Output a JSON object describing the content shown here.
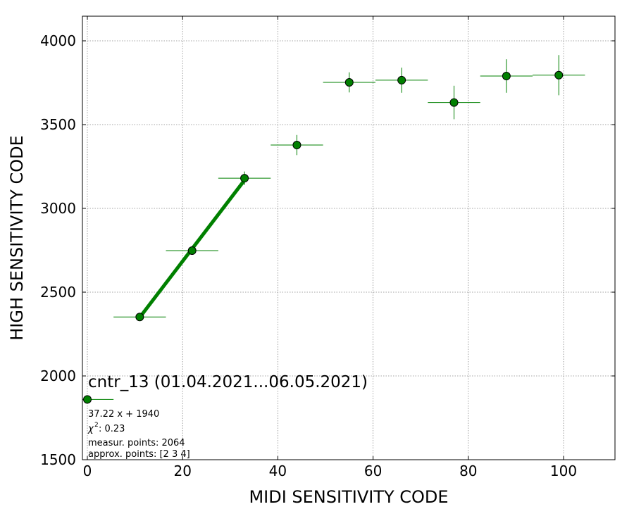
{
  "chart_data": {
    "type": "scatter",
    "xlabel": "MIDI SENSITIVITY CODE",
    "ylabel": "HIGH SENSITIVITY CODE",
    "xlim": [
      -1,
      111
    ],
    "ylim": [
      1500,
      4150
    ],
    "x_ticks": [
      0,
      20,
      40,
      60,
      80,
      100
    ],
    "y_ticks": [
      1500,
      2000,
      2500,
      3000,
      3500,
      4000
    ],
    "grid": true,
    "marker_color": "#008000",
    "marker_edge_color": "#000000",
    "fit_color": "#008000",
    "points": [
      {
        "x": 0,
        "y": 1860,
        "xerr": 5.5,
        "yerr": 0
      },
      {
        "x": 11,
        "y": 2352,
        "xerr": 5.5,
        "yerr": 8
      },
      {
        "x": 22,
        "y": 2748,
        "xerr": 5.5,
        "yerr": 25
      },
      {
        "x": 33,
        "y": 3180,
        "xerr": 5.5,
        "yerr": 40
      },
      {
        "x": 44,
        "y": 3378,
        "xerr": 5.5,
        "yerr": 60
      },
      {
        "x": 55,
        "y": 3752,
        "xerr": 5.5,
        "yerr": 60
      },
      {
        "x": 66,
        "y": 3765,
        "xerr": 5.5,
        "yerr": 75
      },
      {
        "x": 77,
        "y": 3632,
        "xerr": 5.5,
        "yerr": 100
      },
      {
        "x": 88,
        "y": 3790,
        "xerr": 5.5,
        "yerr": 100
      },
      {
        "x": 99,
        "y": 3795,
        "xerr": 5.5,
        "yerr": 120
      }
    ],
    "fit": {
      "slope": 37.22,
      "intercept": 1940,
      "x_from": 11,
      "x_to": 33
    },
    "annotations": {
      "title": "cntr_13 (01.04.2021...06.05.2021)",
      "equation": "37.22 x + 1940",
      "chi2": ": 0.23",
      "measur": "measur. points: 2064",
      "approx": "approx. points: [2 3 4]"
    }
  }
}
